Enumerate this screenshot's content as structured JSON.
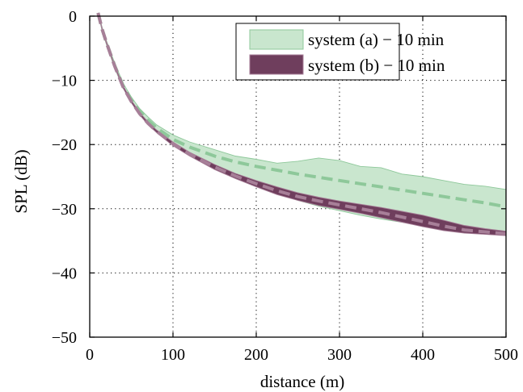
{
  "chart_data": {
    "type": "area",
    "xlabel": "distance (m)",
    "ylabel": "SPL (dB)",
    "xlim": [
      0,
      500
    ],
    "ylim": [
      -50,
      0
    ],
    "xticks": [
      0,
      100,
      200,
      300,
      400,
      500
    ],
    "yticks": [
      0,
      -10,
      -20,
      -30,
      -40,
      -50
    ],
    "xtick_labels": [
      "0",
      "100",
      "200",
      "300",
      "400",
      "500"
    ],
    "ytick_labels": [
      "0",
      "−10",
      "−20",
      "−30",
      "−40",
      "−50"
    ],
    "grid": true,
    "legend_position": "top-right",
    "series": [
      {
        "name": "system (a) − 10 min",
        "color": "#8ec89a",
        "fill_color": "#c9e6ce",
        "x": [
          10,
          15,
          20,
          30,
          40,
          50,
          60,
          70,
          80,
          100,
          120,
          150,
          175,
          200,
          225,
          250,
          275,
          300,
          325,
          350,
          375,
          400,
          425,
          450,
          475,
          500
        ],
        "upper": [
          0.5,
          -1.8,
          -3.8,
          -7.3,
          -10.4,
          -12.6,
          -14.4,
          -15.7,
          -16.9,
          -18.5,
          -19.6,
          -20.8,
          -21.8,
          -22.3,
          -22.9,
          -22.6,
          -22.1,
          -22.5,
          -23.4,
          -23.6,
          -24.6,
          -25.0,
          -25.6,
          -26.2,
          -26.5,
          -27.0
        ],
        "mean": [
          0.5,
          -2.1,
          -4.1,
          -7.7,
          -10.8,
          -13.0,
          -14.8,
          -16.2,
          -17.4,
          -19.2,
          -20.4,
          -21.8,
          -22.7,
          -23.4,
          -24.0,
          -24.6,
          -25.1,
          -25.6,
          -26.1,
          -26.6,
          -27.1,
          -27.6,
          -28.1,
          -28.6,
          -29.1,
          -29.7
        ],
        "lower": [
          0.5,
          -2.4,
          -4.4,
          -8.1,
          -11.2,
          -13.4,
          -15.3,
          -16.8,
          -18.0,
          -19.9,
          -21.4,
          -23.4,
          -25.0,
          -26.4,
          -27.6,
          -28.7,
          -29.6,
          -30.3,
          -31.0,
          -31.6,
          -32.1,
          -32.6,
          -32.9,
          -33.2,
          -33.4,
          -33.6
        ]
      },
      {
        "name": "system (b) − 10 min",
        "color": "#a77f98",
        "fill_color": "#6f3e5d",
        "x": [
          10,
          15,
          20,
          30,
          40,
          50,
          60,
          70,
          80,
          100,
          120,
          150,
          175,
          200,
          225,
          250,
          275,
          300,
          325,
          350,
          375,
          400,
          425,
          450,
          475,
          500
        ],
        "upper": [
          0.5,
          -1.9,
          -3.9,
          -7.6,
          -10.8,
          -13.1,
          -15.0,
          -16.5,
          -17.7,
          -19.6,
          -21.2,
          -23.1,
          -24.5,
          -25.6,
          -26.6,
          -27.5,
          -28.2,
          -28.8,
          -29.3,
          -29.8,
          -30.4,
          -31.0,
          -31.8,
          -32.6,
          -33.1,
          -33.5
        ],
        "mean": [
          0.5,
          -2.1,
          -4.1,
          -7.8,
          -11.0,
          -13.3,
          -15.2,
          -16.7,
          -17.9,
          -19.9,
          -21.5,
          -23.5,
          -24.9,
          -26.1,
          -27.2,
          -28.1,
          -28.8,
          -29.4,
          -30.0,
          -30.6,
          -31.3,
          -32.0,
          -32.7,
          -33.3,
          -33.6,
          -33.9
        ],
        "lower": [
          0.5,
          -2.3,
          -4.3,
          -8.0,
          -11.2,
          -13.5,
          -15.4,
          -16.9,
          -18.1,
          -20.2,
          -21.8,
          -23.9,
          -25.3,
          -26.6,
          -27.8,
          -28.7,
          -29.5,
          -30.1,
          -30.7,
          -31.4,
          -32.1,
          -32.8,
          -33.4,
          -33.8,
          -34.0,
          -34.2
        ]
      }
    ]
  }
}
